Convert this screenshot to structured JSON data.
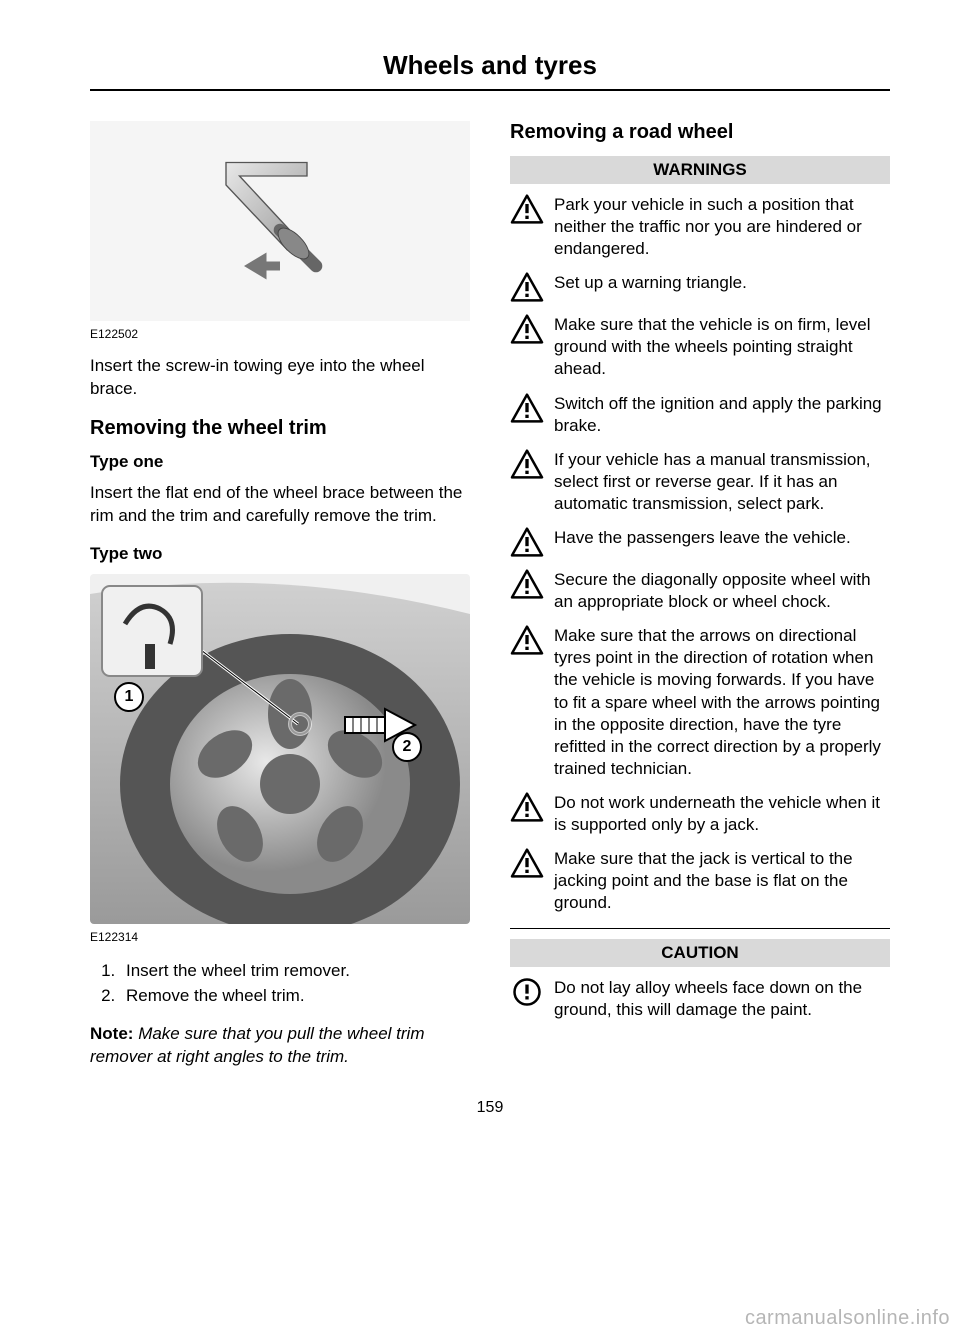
{
  "header": {
    "title": "Wheels and tyres"
  },
  "left": {
    "diagram1_label": "E122502",
    "intro": "Insert the screw-in towing eye into the wheel brace.",
    "h2_trim": "Removing the wheel trim",
    "type_one": "Type one",
    "type_one_body": "Insert the flat end of the wheel brace between the rim and the trim and carefully remove the trim.",
    "type_two": "Type two",
    "diagram2_label": "E122314",
    "callout1": "1",
    "callout2": "2",
    "steps": [
      "Insert the wheel trim remover.",
      "Remove the wheel trim."
    ],
    "note_label": "Note:",
    "note_text": "Make sure that you pull the wheel trim remover at right angles to the trim."
  },
  "right": {
    "h2_road": "Removing a road wheel",
    "warnings_header": "WARNINGS",
    "warnings": [
      "Park your vehicle in such a position that neither the traffic nor you are hindered or endangered.",
      "Set up a warning triangle.",
      "Make sure that the vehicle is on firm, level ground with the wheels pointing straight ahead.",
      "Switch off the ignition and apply the parking brake.",
      "If your vehicle has a manual transmission, select first or reverse gear. If it has an automatic transmission, select park.",
      "Have the passengers leave the vehicle.",
      "Secure the diagonally opposite wheel with an appropriate block or wheel chock.",
      "Make sure that the arrows on directional tyres point in the direction of rotation when the vehicle is moving forwards. If you have to fit a spare wheel with the arrows pointing in the opposite direction, have the tyre refitted in the correct direction by a properly trained technician.",
      "Do not work underneath the vehicle when it is supported only by a jack.",
      "Make sure that the jack is vertical to the jacking point and the base is flat on the ground."
    ],
    "caution_header": "CAUTION",
    "cautions": [
      "Do not lay alloy wheels face down on the ground, this will damage the paint."
    ]
  },
  "footer": {
    "page": "159",
    "watermark": "carmanualsonline.info"
  }
}
